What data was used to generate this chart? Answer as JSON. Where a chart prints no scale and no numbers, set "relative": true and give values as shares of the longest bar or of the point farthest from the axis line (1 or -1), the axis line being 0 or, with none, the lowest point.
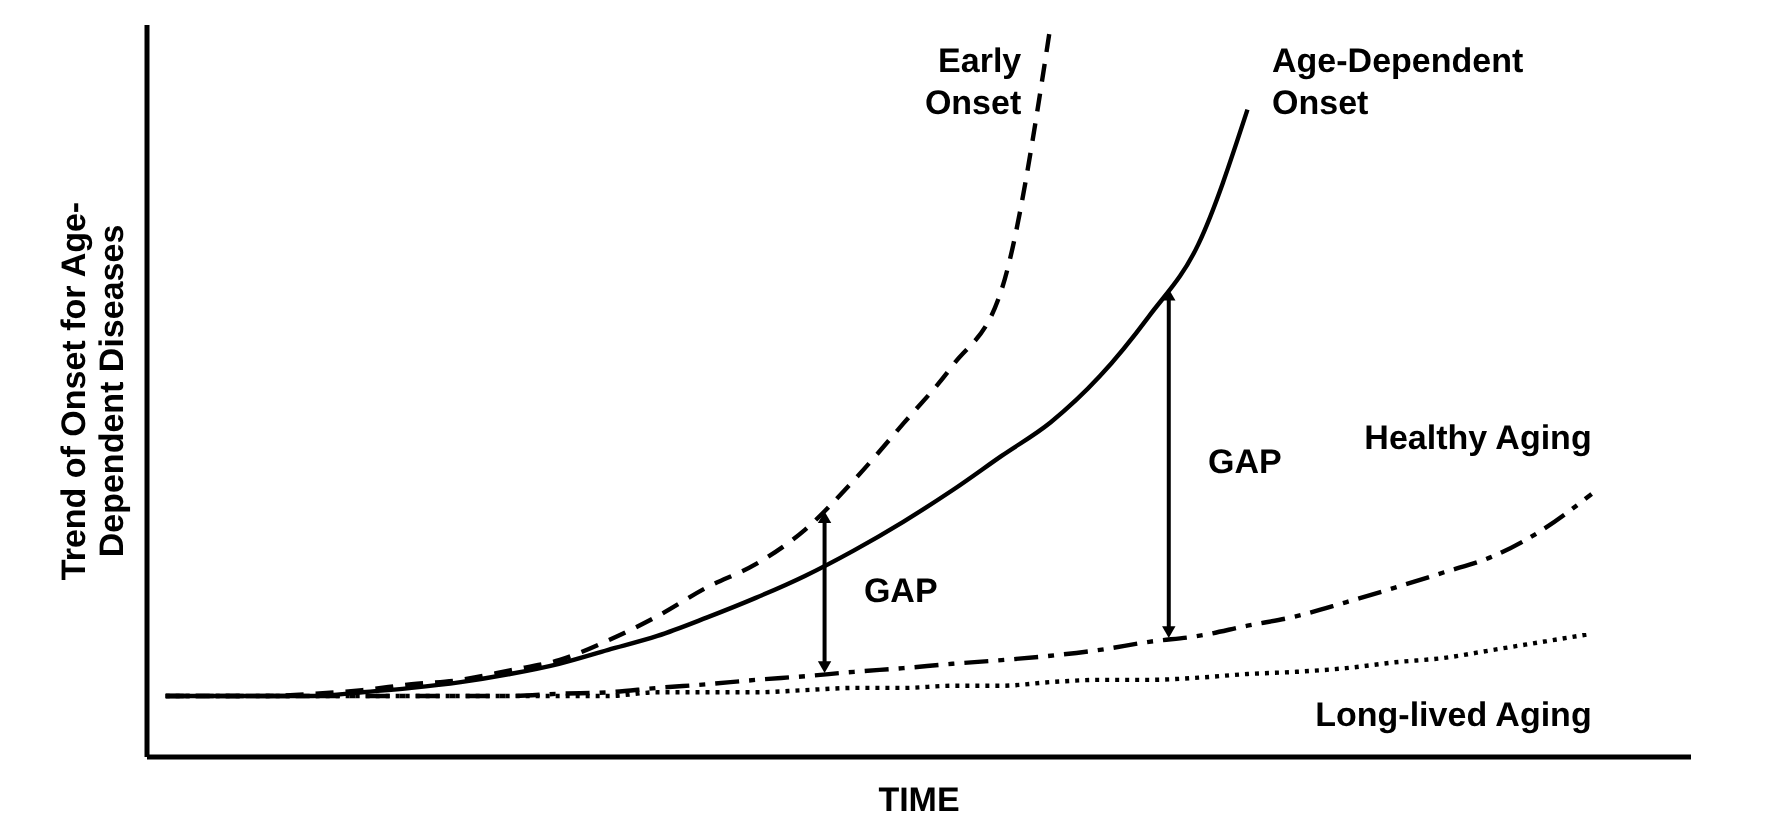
{
  "chart_data": {
    "type": "line",
    "relative": true,
    "xlabel": "TIME",
    "ylabel": "Trend of Onset for Age-Dependent Diseases",
    "categories": [
      null,
      null,
      null,
      null,
      null,
      null,
      null,
      null,
      null,
      null,
      null,
      null,
      null,
      null,
      null,
      null,
      null,
      null,
      null,
      null,
      null,
      null,
      null,
      null,
      null,
      null,
      null,
      null,
      null,
      null,
      null
    ],
    "series": [
      {
        "name": "Early Onset",
        "color": "#000000",
        "line_style": "dashed",
        "values": [
          0.082,
          0.082,
          0.082,
          0.085,
          0.09,
          0.098,
          0.104,
          0.117,
          0.131,
          0.158,
          0.191,
          0.23,
          0.262,
          0.309,
          0.377,
          0.454,
          0.533,
          0.637,
          1.0,
          null,
          null,
          null,
          null,
          null,
          null,
          null,
          null,
          null,
          null,
          null,
          null
        ]
      },
      {
        "name": "Age-Dependent Onset",
        "color": "#000000",
        "line_style": "solid",
        "values": [
          0.082,
          0.082,
          0.082,
          0.082,
          0.087,
          0.093,
          0.101,
          0.112,
          0.126,
          0.145,
          0.164,
          0.189,
          0.216,
          0.246,
          0.281,
          0.32,
          0.363,
          0.41,
          0.456,
          0.519,
          0.601,
          0.699,
          0.883,
          null,
          null,
          null,
          null,
          null,
          null,
          null,
          null
        ]
      },
      {
        "name": "Healthy Aging",
        "color": "#000000",
        "line_style": "dashdot",
        "values": [
          0.082,
          0.082,
          0.082,
          0.082,
          0.082,
          0.082,
          0.082,
          0.082,
          0.085,
          0.087,
          0.093,
          0.098,
          0.104,
          0.109,
          0.115,
          0.12,
          0.126,
          0.131,
          0.137,
          0.145,
          0.156,
          0.164,
          0.178,
          0.191,
          0.21,
          0.23,
          0.251,
          0.273,
          0.309,
          0.358,
          null
        ]
      },
      {
        "name": "Long-lived Aging",
        "color": "#000000",
        "line_style": "dotted",
        "values": [
          0.082,
          0.082,
          0.082,
          0.082,
          0.082,
          0.082,
          0.082,
          0.082,
          0.082,
          0.082,
          0.087,
          0.087,
          0.087,
          0.09,
          0.093,
          0.093,
          0.096,
          0.096,
          0.101,
          0.104,
          0.104,
          0.107,
          0.112,
          0.115,
          0.12,
          0.128,
          0.134,
          0.145,
          0.156,
          0.167,
          null
        ]
      }
    ],
    "annotations": [
      "GAP",
      "GAP"
    ],
    "grid": false,
    "tick_labels": false
  }
}
